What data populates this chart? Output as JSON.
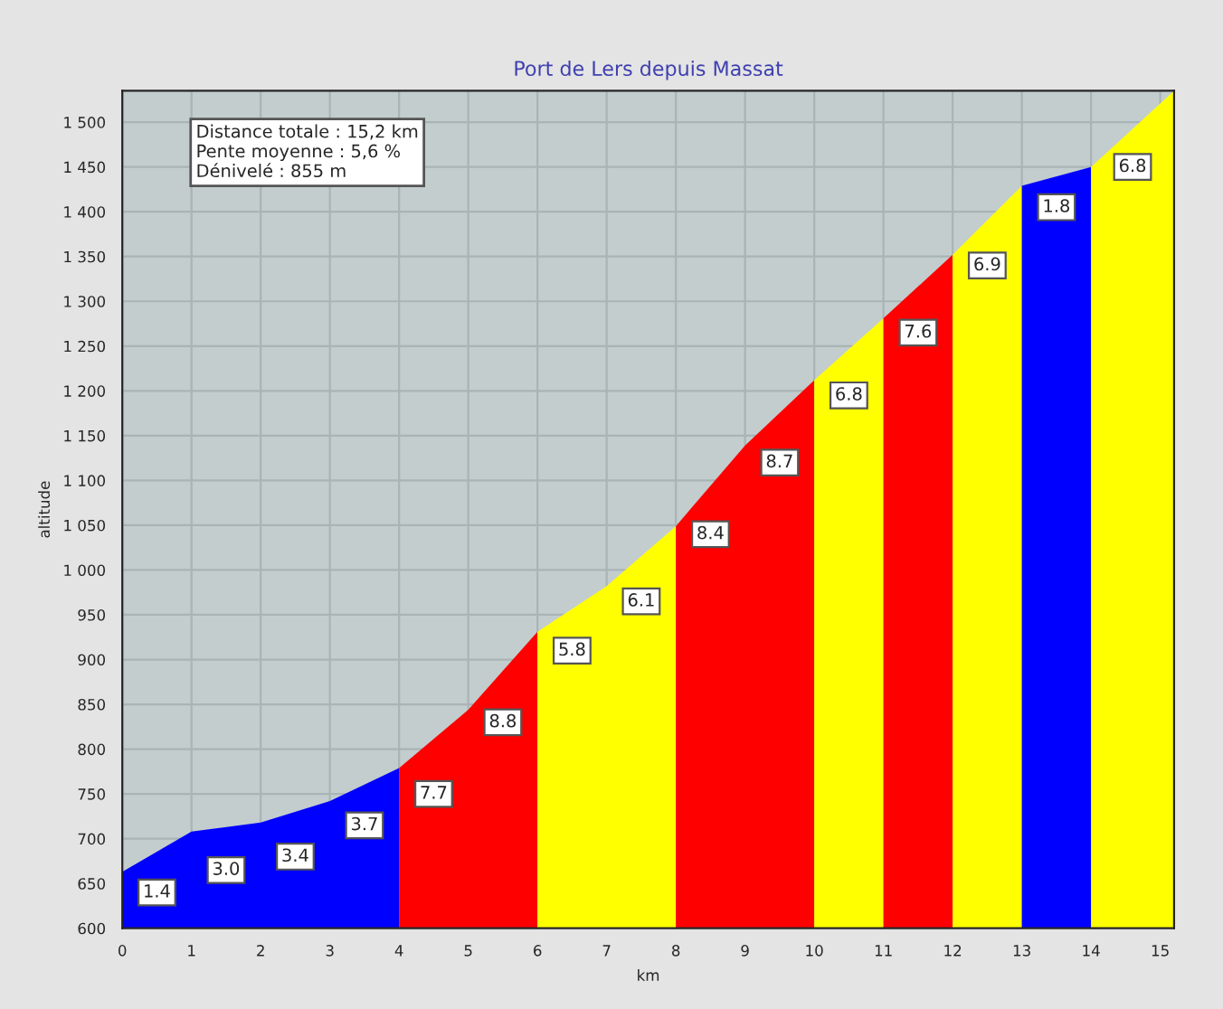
{
  "chart_data": {
    "type": "area",
    "title": "Port de Lers depuis Massat",
    "xlabel": "km",
    "ylabel": "altitude",
    "series": [
      {
        "x": [
          0,
          1,
          2,
          3,
          4
        ],
        "values": [
          663,
          708,
          718,
          742,
          779
        ],
        "color": "#0000ff"
      },
      {
        "x": [
          4,
          5,
          6
        ],
        "values": [
          779,
          844,
          931
        ],
        "color": "#ff0000"
      },
      {
        "x": [
          6,
          7,
          8
        ],
        "values": [
          931,
          982,
          1049
        ],
        "color": "#ffff00"
      },
      {
        "x": [
          8,
          9,
          10
        ],
        "values": [
          1049,
          1139,
          1212
        ],
        "color": "#ff0000"
      },
      {
        "x": [
          10,
          11
        ],
        "values": [
          1212,
          1281
        ],
        "color": "#ffff00"
      },
      {
        "x": [
          11,
          12
        ],
        "values": [
          1281,
          1352
        ],
        "color": "#ff0000"
      },
      {
        "x": [
          12,
          13
        ],
        "values": [
          1352,
          1429
        ],
        "color": "#ffff00"
      },
      {
        "x": [
          13,
          14
        ],
        "values": [
          1429,
          1450
        ],
        "color": "#0000ff"
      },
      {
        "x": [
          14,
          15.2
        ],
        "values": [
          1450,
          1535
        ],
        "color": "#ffff00"
      }
    ],
    "xlim": [
      0,
      15.2
    ],
    "ylim": [
      600,
      1535
    ],
    "xticks": [
      0,
      1,
      2,
      3,
      4,
      5,
      6,
      7,
      8,
      9,
      10,
      11,
      12,
      13,
      14,
      15
    ],
    "yticks": [
      600,
      650,
      700,
      750,
      800,
      850,
      900,
      950,
      {
        "value": 1000,
        "label": "1 000"
      },
      {
        "value": 1050,
        "label": "1 050"
      },
      {
        "value": 1100,
        "label": "1 100"
      },
      {
        "value": 1150,
        "label": "1 150"
      },
      {
        "value": 1200,
        "label": "1 200"
      },
      {
        "value": 1250,
        "label": "1 250"
      },
      {
        "value": 1300,
        "label": "1 300"
      },
      {
        "value": 1350,
        "label": "1 350"
      },
      {
        "value": 1400,
        "label": "1 400"
      },
      {
        "value": 1450,
        "label": "1 450"
      },
      {
        "value": 1500,
        "label": "1 500"
      }
    ],
    "grid": true,
    "annotations": [
      "Distance totale : 15,2 km",
      "Pente moyenne : 5,6 %",
      "Dénivelé : 855 m",
      {
        "text": "1.4",
        "x": 0.5,
        "y": 640
      },
      {
        "text": "3.0",
        "x": 1.5,
        "y": 665
      },
      {
        "text": "3.4",
        "x": 2.5,
        "y": 680
      },
      {
        "text": "3.7",
        "x": 3.5,
        "y": 715
      },
      {
        "text": "7.7",
        "x": 4.5,
        "y": 750
      },
      {
        "text": "8.8",
        "x": 5.5,
        "y": 830
      },
      {
        "text": "5.8",
        "x": 6.5,
        "y": 910
      },
      {
        "text": "6.1",
        "x": 7.5,
        "y": 965
      },
      {
        "text": "8.4",
        "x": 8.5,
        "y": 1040
      },
      {
        "text": "8.7",
        "x": 9.5,
        "y": 1120
      },
      {
        "text": "6.8",
        "x": 10.5,
        "y": 1195
      },
      {
        "text": "7.6",
        "x": 11.5,
        "y": 1265
      },
      {
        "text": "6.9",
        "x": 12.5,
        "y": 1340
      },
      {
        "text": "1.8",
        "x": 13.5,
        "y": 1405
      },
      {
        "text": "6.8",
        "x": 14.6,
        "y": 1450
      }
    ]
  }
}
